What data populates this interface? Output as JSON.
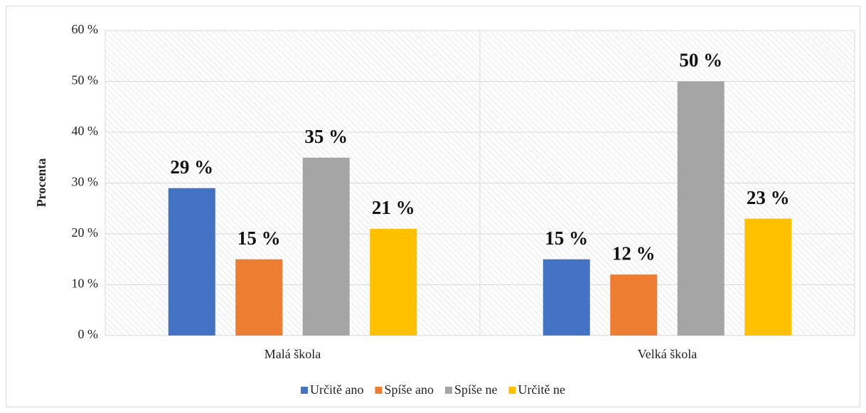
{
  "chart_data": {
    "type": "bar",
    "y_label": "Procenta",
    "categories": [
      "Malá škola",
      "Velká škola"
    ],
    "series": [
      {
        "name": "Určitě ano",
        "color": "#4472c4",
        "values": [
          29,
          15
        ],
        "value_labels": [
          "29 %",
          "15 %"
        ]
      },
      {
        "name": "Spíše ano",
        "color": "#ed7d31",
        "values": [
          15,
          12
        ],
        "value_labels": [
          "15 %",
          "12 %"
        ]
      },
      {
        "name": "Spíše ne",
        "color": "#a5a5a5",
        "values": [
          35,
          50
        ],
        "value_labels": [
          "35 %",
          "50 %"
        ]
      },
      {
        "name": "Určitě ne",
        "color": "#ffc000",
        "values": [
          21,
          23
        ],
        "value_labels": [
          "21 %",
          "23 %"
        ]
      }
    ],
    "ylim": [
      0,
      60
    ],
    "yticks": [
      {
        "value": 0,
        "label": "0 %"
      },
      {
        "value": 10,
        "label": "10 %"
      },
      {
        "value": 20,
        "label": "20 %"
      },
      {
        "value": 30,
        "label": "30 %"
      },
      {
        "value": 40,
        "label": "40 %"
      },
      {
        "value": 50,
        "label": "50 %"
      },
      {
        "value": 60,
        "label": "60 %"
      }
    ],
    "grid": true,
    "legend": "bottom"
  }
}
